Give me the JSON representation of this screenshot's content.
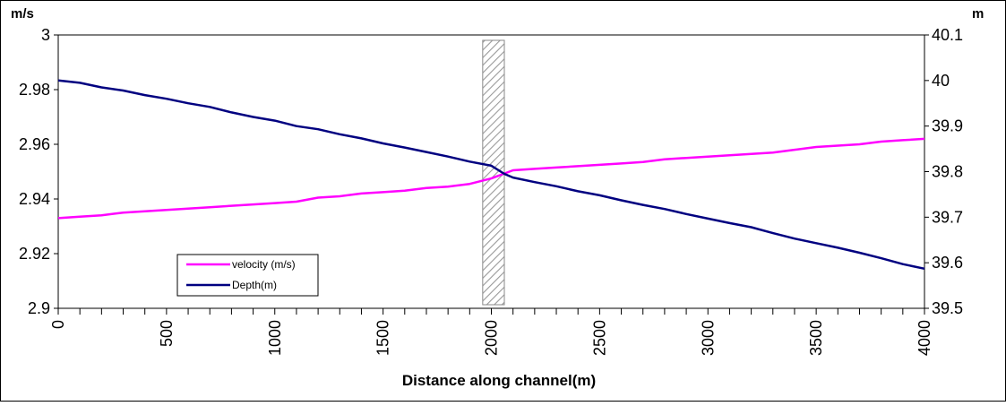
{
  "chart_data": {
    "type": "line",
    "title": "",
    "xlabel": "Distance along channel(m)",
    "ylabel_left_unit": "m/s",
    "ylabel_right_unit": "m",
    "xlim": [
      0,
      4000
    ],
    "x_ticks": [
      "0",
      "500",
      "1000",
      "1500",
      "2000",
      "2500",
      "3000",
      "3500",
      "4000"
    ],
    "x_minor_step": 100,
    "ylim_left": [
      2.9,
      3.0
    ],
    "y_left_ticks": [
      "3",
      "2.98",
      "2.96",
      "2.94",
      "2.92",
      "2.9"
    ],
    "ylim_right": [
      39.5,
      40.1
    ],
    "y_right_ticks": [
      "40.1",
      "40",
      "39.9",
      "39.8",
      "39.7",
      "39.6",
      "39.5"
    ],
    "gap_band": {
      "x_start": 1960,
      "x_end": 2060
    },
    "legend_placement": "bottom-left",
    "series": [
      {
        "name": "velocity (m/s)",
        "axis": "left",
        "color": "#ff00ff",
        "x": [
          0,
          100,
          200,
          300,
          400,
          500,
          600,
          700,
          800,
          900,
          1000,
          1100,
          1200,
          1300,
          1400,
          1500,
          1600,
          1700,
          1800,
          1900,
          2000,
          2100,
          2200,
          2300,
          2400,
          2500,
          2600,
          2700,
          2800,
          2900,
          3000,
          3100,
          3200,
          3300,
          3400,
          3500,
          3600,
          3700,
          3800,
          3900,
          4000
        ],
        "values": [
          2.933,
          2.9335,
          2.934,
          2.935,
          2.9355,
          2.936,
          2.9365,
          2.937,
          2.9375,
          2.938,
          2.9385,
          2.939,
          2.9405,
          2.941,
          2.942,
          2.9425,
          2.943,
          2.944,
          2.9445,
          2.9455,
          2.9475,
          2.9505,
          2.951,
          2.9515,
          2.952,
          2.9525,
          2.953,
          2.9535,
          2.9545,
          2.955,
          2.9555,
          2.956,
          2.9565,
          2.957,
          2.958,
          2.959,
          2.9595,
          2.96,
          2.961,
          2.9615,
          2.962
        ]
      },
      {
        "name": "Depth(m)",
        "axis": "right",
        "color": "#000080",
        "x": [
          0,
          100,
          200,
          300,
          400,
          500,
          600,
          700,
          800,
          900,
          1000,
          1100,
          1200,
          1300,
          1400,
          1500,
          1600,
          1700,
          1800,
          1900,
          2000,
          2060,
          2100,
          2200,
          2300,
          2400,
          2500,
          2600,
          2700,
          2800,
          2900,
          3000,
          3100,
          3200,
          3300,
          3400,
          3500,
          3600,
          3700,
          3800,
          3900,
          4000
        ],
        "values": [
          40.0,
          39.995,
          39.985,
          39.978,
          39.968,
          39.96,
          39.95,
          39.942,
          39.93,
          39.92,
          39.912,
          39.9,
          39.893,
          39.882,
          39.873,
          39.862,
          39.853,
          39.843,
          39.833,
          39.822,
          39.813,
          39.795,
          39.787,
          39.777,
          39.768,
          39.757,
          39.748,
          39.737,
          39.727,
          39.718,
          39.707,
          39.697,
          39.687,
          39.678,
          39.665,
          39.653,
          39.643,
          39.633,
          39.622,
          39.61,
          39.597,
          39.587
        ]
      }
    ]
  }
}
